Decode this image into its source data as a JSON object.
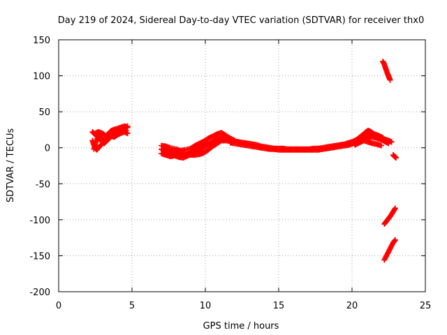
{
  "chart_data": {
    "type": "scatter",
    "title": "Day 219 of 2024, Sidereal Day-to-day VTEC variation (SDTVAR) for receiver thx0",
    "xlabel": "GPS time / hours",
    "ylabel": "SDTVAR / TECUs",
    "xlim": [
      0,
      25
    ],
    "ylim": [
      -200,
      150
    ],
    "xticks": [
      0,
      5,
      10,
      15,
      20,
      25
    ],
    "yticks": [
      -200,
      -150,
      -100,
      -50,
      0,
      50,
      100,
      150
    ],
    "grid": true,
    "legend": "none",
    "marker": "plus",
    "series": [
      {
        "color": "#ff0000",
        "segments": [
          [
            [
              2.3,
              22
            ],
            [
              2.5,
              18
            ],
            [
              2.7,
              14
            ],
            [
              2.9,
              10
            ],
            [
              3.0,
              8
            ],
            [
              3.1,
              6
            ],
            [
              3.3,
              10
            ],
            [
              3.5,
              14
            ],
            [
              3.7,
              18
            ],
            [
              3.9,
              22
            ],
            [
              4.1,
              24
            ],
            [
              4.3,
              26
            ],
            [
              4.5,
              28
            ],
            [
              4.7,
              30
            ]
          ],
          [
            [
              2.3,
              10
            ],
            [
              2.4,
              4
            ],
            [
              2.5,
              0
            ],
            [
              2.6,
              -3
            ],
            [
              2.8,
              2
            ],
            [
              3.0,
              6
            ],
            [
              3.2,
              10
            ],
            [
              3.4,
              14
            ],
            [
              3.6,
              18
            ],
            [
              3.8,
              20
            ],
            [
              4.0,
              22
            ],
            [
              4.2,
              24
            ],
            [
              4.4,
              26
            ],
            [
              4.6,
              24
            ]
          ],
          [
            [
              2.4,
              -2
            ],
            [
              2.5,
              5
            ],
            [
              2.6,
              12
            ],
            [
              2.8,
              15
            ],
            [
              3.0,
              12
            ],
            [
              3.2,
              8
            ],
            [
              3.4,
              13
            ],
            [
              3.6,
              16
            ],
            [
              3.8,
              15
            ],
            [
              4.0,
              18
            ],
            [
              4.2,
              20
            ],
            [
              4.5,
              22
            ],
            [
              4.7,
              20
            ]
          ],
          [
            [
              2.5,
              20
            ],
            [
              2.7,
              22
            ],
            [
              3.0,
              20
            ],
            [
              3.2,
              16
            ],
            [
              3.4,
              20
            ],
            [
              3.6,
              24
            ],
            [
              3.9,
              26
            ],
            [
              4.2,
              28
            ],
            [
              4.5,
              30
            ],
            [
              4.7,
              28
            ]
          ],
          [
            [
              7.0,
              -2
            ],
            [
              7.2,
              -4
            ],
            [
              7.5,
              -6
            ],
            [
              7.8,
              -8
            ],
            [
              8.0,
              -5
            ],
            [
              8.3,
              -7
            ],
            [
              8.6,
              -9
            ],
            [
              9.0,
              -10
            ],
            [
              9.3,
              -10
            ],
            [
              9.6,
              -9
            ],
            [
              9.9,
              -7
            ],
            [
              10.2,
              -3
            ],
            [
              10.5,
              2
            ],
            [
              10.8,
              6
            ],
            [
              11.1,
              10
            ],
            [
              11.4,
              10
            ],
            [
              11.7,
              9
            ]
          ],
          [
            [
              7.0,
              -8
            ],
            [
              7.3,
              -10
            ],
            [
              7.6,
              -12
            ],
            [
              7.9,
              -11
            ],
            [
              8.2,
              -13
            ],
            [
              8.5,
              -14
            ],
            [
              8.8,
              -11
            ],
            [
              9.1,
              -9
            ],
            [
              9.4,
              -6
            ],
            [
              9.7,
              -2
            ],
            [
              10.0,
              2
            ],
            [
              10.3,
              6
            ],
            [
              10.6,
              10
            ],
            [
              10.9,
              13
            ],
            [
              11.2,
              15
            ],
            [
              11.5,
              14
            ],
            [
              11.8,
              12
            ]
          ],
          [
            [
              7.0,
              3
            ],
            [
              7.3,
              2
            ],
            [
              7.6,
              0
            ],
            [
              8.0,
              -2
            ],
            [
              8.3,
              -4
            ],
            [
              8.6,
              -3
            ],
            [
              9.0,
              -1
            ],
            [
              9.3,
              3
            ],
            [
              9.6,
              6
            ],
            [
              9.9,
              9
            ],
            [
              10.2,
              13
            ],
            [
              10.5,
              16
            ],
            [
              10.8,
              19
            ],
            [
              11.1,
              21
            ],
            [
              11.4,
              17
            ],
            [
              11.7,
              13
            ],
            [
              12.0,
              10
            ]
          ],
          [
            [
              7.2,
              -5
            ],
            [
              7.6,
              -3
            ],
            [
              8.0,
              -8
            ],
            [
              8.4,
              -10
            ],
            [
              8.8,
              -6
            ],
            [
              9.2,
              -4
            ],
            [
              9.5,
              0
            ],
            [
              9.8,
              3
            ],
            [
              10.1,
              6
            ],
            [
              10.4,
              4
            ],
            [
              10.7,
              8
            ]
          ],
          [
            [
              11.7,
              11
            ],
            [
              12.0,
              9
            ],
            [
              12.3,
              8
            ],
            [
              12.6,
              7
            ],
            [
              12.9,
              6
            ],
            [
              13.2,
              5
            ],
            [
              13.5,
              4
            ],
            [
              13.8,
              2
            ],
            [
              14.1,
              1
            ],
            [
              14.4,
              0
            ],
            [
              14.7,
              -1
            ],
            [
              15.0,
              -1
            ],
            [
              15.3,
              -1
            ],
            [
              15.6,
              -2
            ],
            [
              15.9,
              -2
            ],
            [
              16.2,
              -2
            ],
            [
              16.5,
              -2
            ],
            [
              16.8,
              -2
            ],
            [
              17.1,
              -2
            ],
            [
              17.4,
              -1
            ],
            [
              17.7,
              -1
            ],
            [
              18.0,
              0
            ],
            [
              18.3,
              1
            ],
            [
              18.6,
              2
            ],
            [
              18.9,
              3
            ],
            [
              19.2,
              4
            ],
            [
              19.5,
              5
            ],
            [
              19.8,
              7
            ],
            [
              20.1,
              9
            ],
            [
              20.4,
              12
            ],
            [
              20.7,
              14
            ],
            [
              21.0,
              16
            ],
            [
              21.3,
              18
            ],
            [
              21.6,
              17
            ],
            [
              21.9,
              15
            ],
            [
              22.2,
              12
            ],
            [
              22.5,
              10
            ],
            [
              22.7,
              8
            ]
          ],
          [
            [
              11.7,
              7
            ],
            [
              12.0,
              6
            ],
            [
              12.3,
              5
            ],
            [
              12.6,
              4
            ],
            [
              12.9,
              3
            ],
            [
              13.2,
              2
            ],
            [
              13.5,
              1
            ],
            [
              13.8,
              0
            ],
            [
              14.1,
              -1
            ],
            [
              14.4,
              -2
            ],
            [
              14.7,
              -2
            ],
            [
              15.0,
              -3
            ],
            [
              15.3,
              -3
            ],
            [
              15.6,
              -3
            ],
            [
              15.9,
              -3
            ],
            [
              16.2,
              -3
            ],
            [
              16.5,
              -3
            ],
            [
              16.8,
              -3
            ],
            [
              17.1,
              -3
            ],
            [
              17.4,
              -3
            ],
            [
              17.7,
              -3
            ],
            [
              18.0,
              -2
            ],
            [
              18.3,
              -1
            ],
            [
              18.6,
              0
            ],
            [
              18.9,
              1
            ],
            [
              19.2,
              2
            ],
            [
              19.5,
              3
            ],
            [
              19.8,
              4
            ],
            [
              20.1,
              6
            ],
            [
              20.4,
              8
            ],
            [
              20.7,
              10
            ],
            [
              21.0,
              13
            ],
            [
              21.3,
              15
            ],
            [
              21.6,
              14
            ],
            [
              21.9,
              12
            ],
            [
              22.2,
              9
            ],
            [
              22.5,
              6
            ]
          ],
          [
            [
              20.0,
              6
            ],
            [
              20.3,
              11
            ],
            [
              20.6,
              16
            ],
            [
              20.9,
              21
            ],
            [
              21.1,
              24
            ],
            [
              21.3,
              22
            ],
            [
              21.5,
              19
            ],
            [
              21.8,
              17
            ],
            [
              22.1,
              14
            ]
          ],
          [
            [
              20.2,
              4
            ],
            [
              20.5,
              7
            ],
            [
              20.8,
              10
            ],
            [
              21.1,
              8
            ],
            [
              21.4,
              6
            ],
            [
              21.7,
              5
            ],
            [
              22.0,
              3
            ]
          ],
          [
            [
              22.1,
              120
            ],
            [
              22.2,
              116
            ],
            [
              22.3,
              110
            ],
            [
              22.4,
              104
            ],
            [
              22.5,
              99
            ],
            [
              22.6,
              94
            ]
          ],
          [
            [
              22.8,
              -10
            ],
            [
              22.9,
              -12
            ],
            [
              23.0,
              -14
            ]
          ],
          [
            [
              22.2,
              -106
            ],
            [
              22.35,
              -102
            ],
            [
              22.5,
              -98
            ],
            [
              22.65,
              -94
            ],
            [
              22.8,
              -89
            ],
            [
              22.95,
              -84
            ]
          ],
          [
            [
              22.2,
              -156
            ],
            [
              22.35,
              -150
            ],
            [
              22.5,
              -144
            ],
            [
              22.65,
              -138
            ],
            [
              22.8,
              -132
            ],
            [
              22.95,
              -128
            ]
          ]
        ]
      }
    ]
  }
}
